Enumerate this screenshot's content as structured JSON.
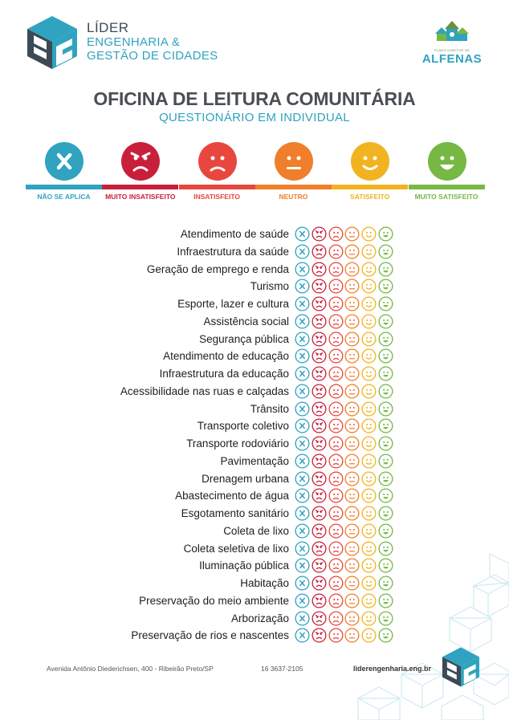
{
  "header": {
    "brand_line1": "LÍDER",
    "brand_line2": "ENGENHARIA &",
    "brand_line3": "GESTÃO DE CIDADES",
    "right_logo_caption": "PLANO DIRETOR DE",
    "right_logo_city": "ALFENAS"
  },
  "title": "OFICINA DE LEITURA COMUNITÁRIA",
  "subtitle": "QUESTIONÁRIO EM INDIVIDUAL",
  "legend": [
    {
      "key": "na",
      "label": "NÃO SE APLICA",
      "color": "#2fa3bf",
      "icon": "x-icon"
    },
    {
      "key": "vu",
      "label": "MUITO INSATISFEITO",
      "color": "#c8203a",
      "icon": "angry-face-icon"
    },
    {
      "key": "u",
      "label": "INSATISFEITO",
      "color": "#e8473e",
      "icon": "sad-face-icon"
    },
    {
      "key": "n",
      "label": "NEUTRO",
      "color": "#f07e2a",
      "icon": "neutral-face-icon"
    },
    {
      "key": "s",
      "label": "SATISFEITO",
      "color": "#f2b320",
      "icon": "smile-face-icon"
    },
    {
      "key": "vs",
      "label": "MUITO SATISFEITO",
      "color": "#76b843",
      "icon": "happy-face-icon"
    }
  ],
  "items": [
    "Atendimento de saúde",
    "Infraestrutura da saúde",
    "Geração de emprego e renda",
    "Turismo",
    "Esporte, lazer e cultura",
    "Assistência social",
    "Segurança pública",
    "Atendimento de educação",
    "Infraestrutura da educação",
    "Acessibilidade nas ruas e calçadas",
    "Trânsito",
    "Transporte coletivo",
    "Transporte rodoviário",
    "Pavimentação",
    "Drenagem urbana",
    "Abastecimento de água",
    "Esgotamento sanitário",
    "Coleta de lixo",
    "Coleta seletiva de lixo",
    "Iluminação pública",
    "Habitação",
    "Preservação do meio ambiente",
    "Arborização",
    "Preservação de rios e nascentes"
  ],
  "footer": {
    "address": "Avenida Antônio Diederichsen, 400 - Ribeirão Preto/SP",
    "phone": "16 3637-2105",
    "website": "liderengenharia.eng.br"
  }
}
